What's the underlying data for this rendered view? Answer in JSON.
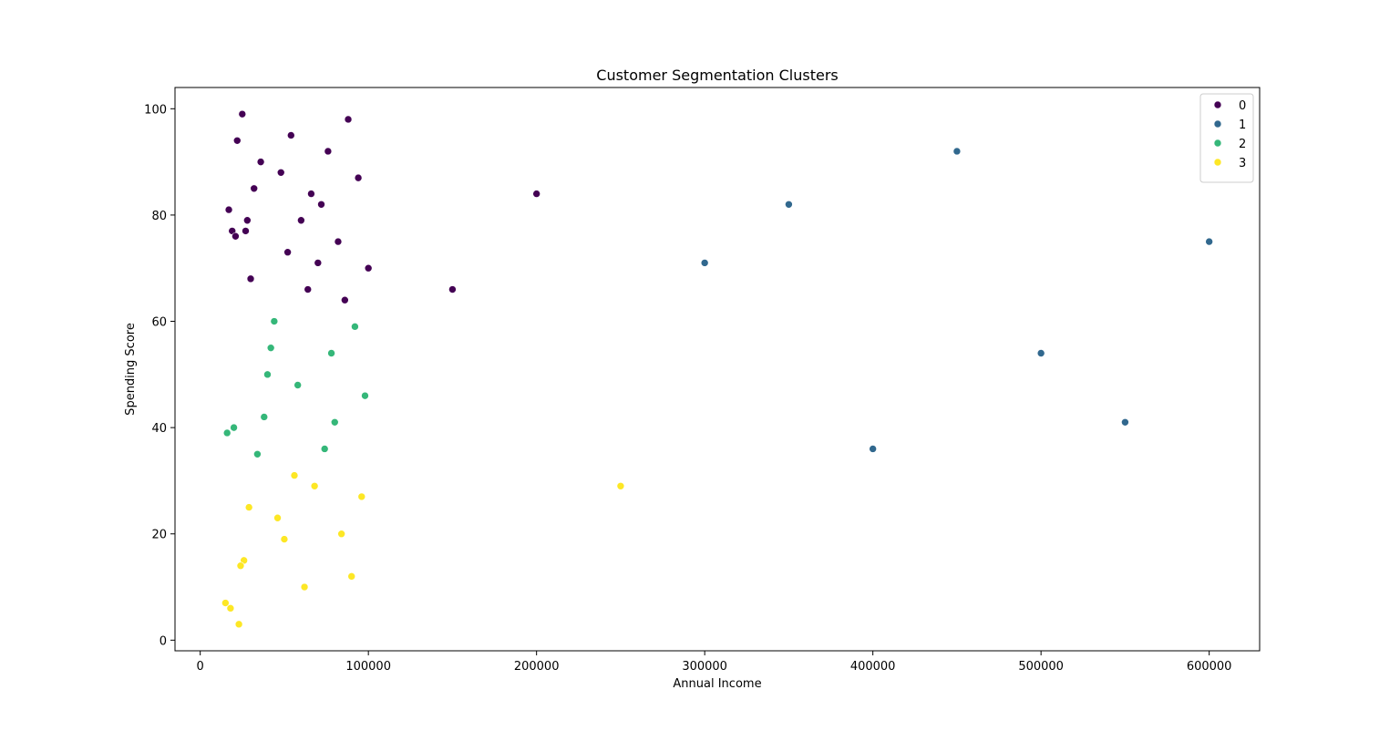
{
  "chart_data": {
    "type": "scatter",
    "title": "Customer Segmentation Clusters",
    "xlabel": "Annual Income",
    "ylabel": "Spending Score",
    "xlim": [
      -15000,
      630000
    ],
    "ylim": [
      -2,
      104
    ],
    "xticks": [
      0,
      100000,
      200000,
      300000,
      400000,
      500000,
      600000
    ],
    "yticks": [
      0,
      20,
      40,
      60,
      80,
      100
    ],
    "grid": false,
    "legend_position": "top-right",
    "series": [
      {
        "name": "0",
        "color": "#440154",
        "points": [
          [
            25000,
            99
          ],
          [
            88000,
            98
          ],
          [
            22000,
            94
          ],
          [
            54000,
            95
          ],
          [
            76000,
            92
          ],
          [
            36000,
            90
          ],
          [
            48000,
            88
          ],
          [
            94000,
            87
          ],
          [
            32000,
            85
          ],
          [
            66000,
            84
          ],
          [
            200000,
            84
          ],
          [
            72000,
            82
          ],
          [
            17000,
            81
          ],
          [
            28000,
            79
          ],
          [
            60000,
            79
          ],
          [
            19000,
            77
          ],
          [
            27000,
            77
          ],
          [
            21000,
            76
          ],
          [
            82000,
            75
          ],
          [
            52000,
            73
          ],
          [
            70000,
            71
          ],
          [
            100000,
            70
          ],
          [
            30000,
            68
          ],
          [
            64000,
            66
          ],
          [
            150000,
            66
          ],
          [
            86000,
            64
          ]
        ]
      },
      {
        "name": "1",
        "color": "#31688e",
        "points": [
          [
            450000,
            92
          ],
          [
            350000,
            82
          ],
          [
            600000,
            75
          ],
          [
            300000,
            71
          ],
          [
            500000,
            54
          ],
          [
            550000,
            41
          ],
          [
            400000,
            36
          ]
        ]
      },
      {
        "name": "2",
        "color": "#35b779",
        "points": [
          [
            44000,
            60
          ],
          [
            92000,
            59
          ],
          [
            42000,
            55
          ],
          [
            78000,
            54
          ],
          [
            40000,
            50
          ],
          [
            58000,
            48
          ],
          [
            98000,
            46
          ],
          [
            38000,
            42
          ],
          [
            80000,
            41
          ],
          [
            20000,
            40
          ],
          [
            16000,
            39
          ],
          [
            74000,
            36
          ],
          [
            34000,
            35
          ]
        ]
      },
      {
        "name": "3",
        "color": "#fde725",
        "points": [
          [
            56000,
            31
          ],
          [
            68000,
            29
          ],
          [
            250000,
            29
          ],
          [
            96000,
            27
          ],
          [
            29000,
            25
          ],
          [
            46000,
            23
          ],
          [
            84000,
            20
          ],
          [
            50000,
            19
          ],
          [
            26000,
            15
          ],
          [
            24000,
            14
          ],
          [
            90000,
            12
          ],
          [
            62000,
            10
          ],
          [
            15000,
            7
          ],
          [
            18000,
            6
          ],
          [
            23000,
            3
          ]
        ]
      }
    ]
  }
}
